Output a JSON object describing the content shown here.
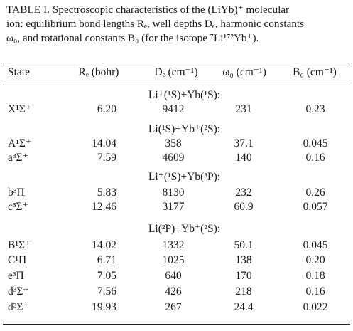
{
  "caption": {
    "label": "TABLE I.",
    "line1": "Spectroscopic characteristics of the (LiYb)⁺ molecular",
    "line2": "ion: equilibrium bond lengths Rₑ, well depths Dₑ, harmonic constants",
    "line3": "ω₀, and rotational constants B₀ (for the isotope ⁷Li¹⁷²Yb⁺)."
  },
  "header": {
    "state": "State",
    "re": "Rₑ (bohr)",
    "de": "Dₑ (cm⁻¹)",
    "w0": "ω₀ (cm⁻¹)",
    "b0": "B₀ (cm⁻¹)"
  },
  "groups": [
    {
      "asymptote": "Li⁺(¹S)+Yb(¹S):",
      "rows": [
        {
          "state": "X¹Σ⁺",
          "re": "6.20",
          "de": "9412",
          "w0": "231",
          "b0": "0.23"
        }
      ]
    },
    {
      "asymptote": "Li(¹S)+Yb⁺(²S):",
      "rows": [
        {
          "state": "A¹Σ⁺",
          "re": "14.04",
          "de": "358",
          "w0": "37.1",
          "b0": "0.045"
        },
        {
          "state": "a³Σ⁺",
          "re": "7.59",
          "de": "4609",
          "w0": "140",
          "b0": "0.16"
        }
      ]
    },
    {
      "asymptote": "Li⁺(¹S)+Yb(³P):",
      "rows": [
        {
          "state": "b³Π",
          "re": "5.83",
          "de": "8130",
          "w0": "232",
          "b0": "0.26"
        },
        {
          "state": "c³Σ⁺",
          "re": "12.46",
          "de": "3177",
          "w0": "60.9",
          "b0": "0.057"
        }
      ]
    },
    {
      "asymptote": "Li(²P)+Yb⁺(²S):",
      "rows": [
        {
          "state": "B¹Σ⁺",
          "re": "14.02",
          "de": "1332",
          "w0": "50.1",
          "b0": "0.045"
        },
        {
          "state": "C¹Π",
          "re": "6.71",
          "de": "1025",
          "w0": "138",
          "b0": "0.20"
        },
        {
          "state": "e³Π",
          "re": "7.05",
          "de": "640",
          "w0": "170",
          "b0": "0.18"
        },
        {
          "state": "d³Σ⁺",
          "re": "7.56",
          "de": "426",
          "w0": "218",
          "b0": "0.16"
        },
        {
          "state": "d³Σ⁺",
          "re": "19.93",
          "de": "267",
          "w0": "24.4",
          "b0": "0.022"
        }
      ]
    }
  ]
}
